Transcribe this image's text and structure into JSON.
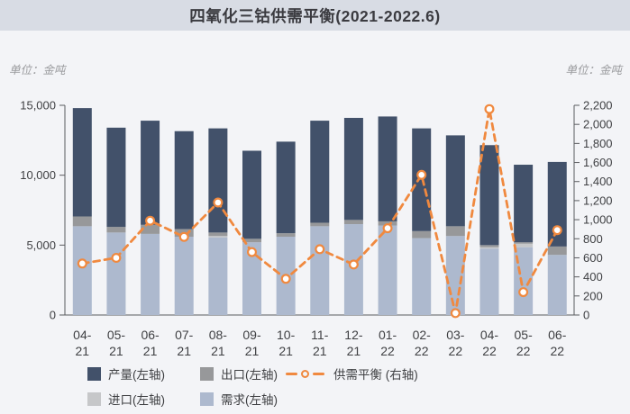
{
  "header": {
    "title": "四氧化三钴供需平衡(2021-2022.6)"
  },
  "units": {
    "left": "单位：金吨",
    "right": "单位：金吨"
  },
  "colors": {
    "header_band": "#d8dce4",
    "background": "#f3f4f7",
    "axis": "#5a5b5f",
    "text": "#3f4043",
    "title_text": "#3b3b40",
    "unit_text": "#9a9b9e"
  },
  "chart_data": {
    "type": "bar",
    "subtype": "stacked-bars-with-line",
    "title": "四氧化三钴供需平衡(2021-2022.6)",
    "xlabel": "",
    "ylabel_left": "单位：金吨",
    "ylabel_right": "单位：金吨",
    "grid": false,
    "legend_position": "bottom",
    "categories": [
      "04-21",
      "05-21",
      "06-21",
      "07-21",
      "08-21",
      "09-21",
      "10-21",
      "11-21",
      "12-21",
      "01-22",
      "02-22",
      "03-22",
      "04-22",
      "05-22",
      "06-22"
    ],
    "series": [
      {
        "name": "需求(左轴)",
        "type": "bar",
        "stack": true,
        "axis": "left",
        "color": "#adb9ce",
        "values": [
          6350,
          5900,
          5800,
          5600,
          5550,
          5200,
          5600,
          6350,
          6500,
          6400,
          5500,
          5650,
          4750,
          4850,
          4300
        ]
      },
      {
        "name": "进口(左轴)",
        "type": "bar",
        "stack": true,
        "axis": "left",
        "color": "#c6c7c9",
        "values": [
          0,
          0,
          0,
          0,
          100,
          0,
          0,
          0,
          0,
          0,
          0,
          0,
          100,
          250,
          0
        ]
      },
      {
        "name": "出口(左轴)",
        "type": "bar",
        "stack": true,
        "axis": "left",
        "color": "#97989a",
        "values": [
          700,
          400,
          650,
          550,
          250,
          250,
          250,
          250,
          300,
          300,
          500,
          700,
          150,
          100,
          600
        ]
      },
      {
        "name": "产量(左轴)",
        "type": "bar",
        "stack": true,
        "axis": "left",
        "color": "#42516a",
        "values": [
          7750,
          7100,
          7450,
          7000,
          7450,
          6300,
          6550,
          7300,
          7300,
          7500,
          7350,
          6500,
          7150,
          5550,
          6050
        ]
      },
      {
        "name": "供需平衡 (右轴)",
        "type": "line",
        "axis": "right",
        "color": "#f0893f",
        "line_style": "dashed",
        "marker": "hollow-circle",
        "values": [
          540,
          600,
          990,
          820,
          1180,
          660,
          380,
          690,
          530,
          910,
          1470,
          20,
          2160,
          240,
          890
        ]
      }
    ],
    "left_axis": {
      "ticks": [
        0,
        5000,
        10000,
        15000
      ],
      "min": 0,
      "max": 15000
    },
    "right_axis": {
      "ticks": [
        0,
        200,
        400,
        600,
        800,
        1000,
        1200,
        1400,
        1600,
        1800,
        2000,
        2200
      ],
      "min": 0,
      "max": 2200
    }
  }
}
